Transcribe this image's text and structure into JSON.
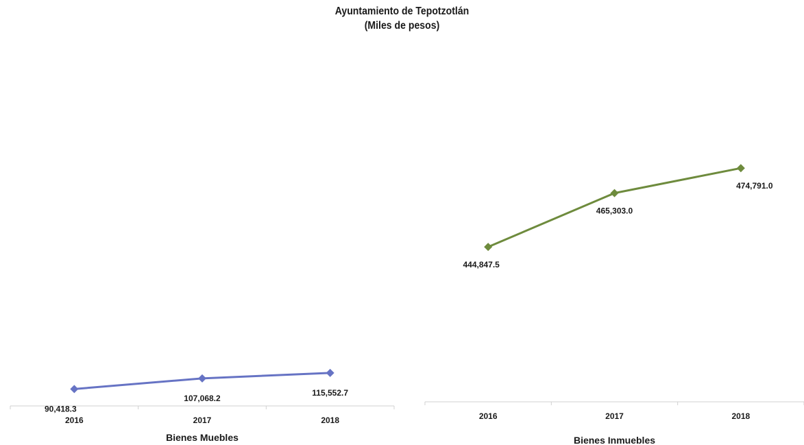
{
  "title": "Ayuntamiento de Tepotzotlán",
  "subtitle": "(Miles de pesos)",
  "chart_data": [
    {
      "type": "line",
      "xlabel": "Bienes Muebles",
      "categories": [
        "2016",
        "2017",
        "2018"
      ],
      "series": [
        {
          "values": [
            90418.3,
            107068.2,
            115552.7
          ],
          "labels": [
            "90,418.3",
            "107,068.2",
            "115,552.7"
          ],
          "color": "#6673c4"
        }
      ],
      "ylim": [
        64000,
        630000
      ],
      "grid": false,
      "marker": "diamond"
    },
    {
      "type": "line",
      "xlabel": "Bienes Inmuebles",
      "categories": [
        "2016",
        "2017",
        "2018"
      ],
      "series": [
        {
          "values": [
            444847.5,
            465303.0,
            474791.0
          ],
          "labels": [
            "444,847.5",
            "465,303.0",
            "474,791.0"
          ],
          "color": "#6e8b3d"
        }
      ],
      "ylim": [
        386000,
        522000
      ],
      "grid": false,
      "marker": "diamond"
    }
  ]
}
